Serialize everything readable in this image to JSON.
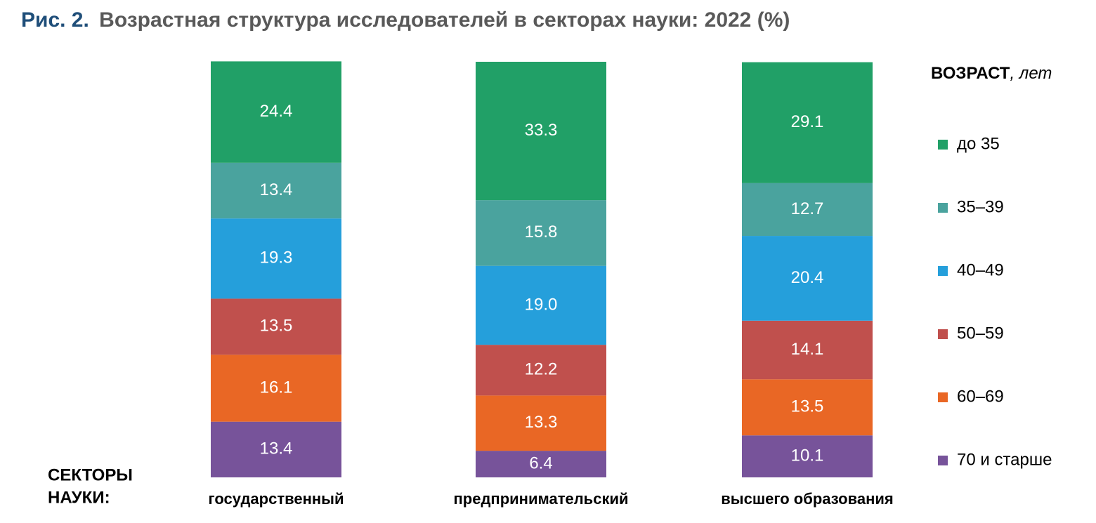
{
  "chart_data": {
    "type": "stacked_bar",
    "title": [
      "Рис. 2.",
      "Возрастная структура исследователей в секторах науки: 2022 (%)"
    ],
    "xlabel": [
      "СЕКТОРЫ",
      "НАУКИ:"
    ],
    "legend_title": [
      "ВОЗРАСТ",
      ", лет"
    ],
    "categories": [
      "государственный",
      "предпринимательский",
      "высшего образования"
    ],
    "series": [
      {
        "name": "до 35",
        "color": "#21a067",
        "values": [
          24.4,
          33.3,
          29.1
        ]
      },
      {
        "name": "35–39",
        "color": "#4aa39e",
        "values": [
          13.4,
          15.8,
          12.7
        ]
      },
      {
        "name": "40–49",
        "color": "#259fdb",
        "values": [
          19.3,
          19.0,
          20.4
        ],
        "value_labels": [
          "19.3",
          "19.0",
          "20.4"
        ]
      },
      {
        "name": "50–59",
        "color": "#c0504d",
        "values": [
          13.5,
          12.2,
          14.1
        ]
      },
      {
        "name": "60–69",
        "color": "#e96725",
        "values": [
          16.1,
          13.3,
          13.5
        ]
      },
      {
        "name": "70 и старше",
        "color": "#77539a",
        "values": [
          13.4,
          6.4,
          10.1
        ]
      }
    ]
  }
}
